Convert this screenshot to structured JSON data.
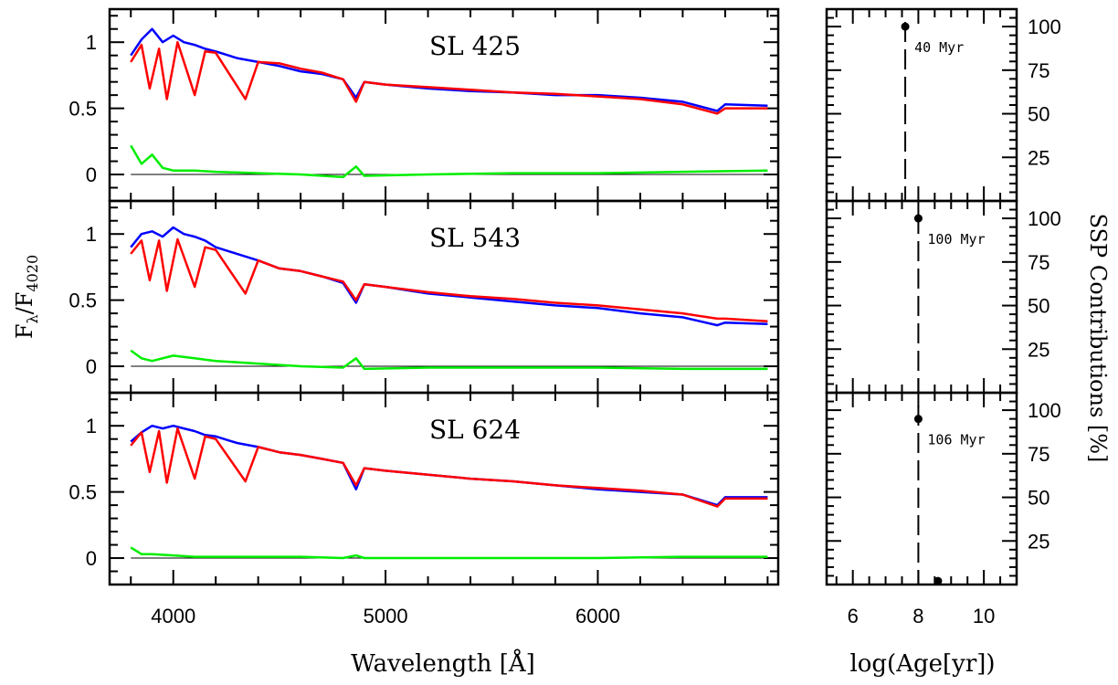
{
  "chart_data": [
    {
      "type": "line",
      "panel": "spectrum",
      "title": "SL 425",
      "xlim": [
        3700,
        6850
      ],
      "ylim": [
        -0.2,
        1.25
      ],
      "yticks": [
        0,
        0.5,
        1
      ],
      "ytick_labels": [
        "0",
        "0.5",
        "1"
      ],
      "zero_line": 0,
      "series": [
        {
          "color": "#0000ff",
          "x": [
            3800,
            3850,
            3900,
            3950,
            4000,
            4050,
            4100,
            4150,
            4200,
            4300,
            4400,
            4500,
            4600,
            4700,
            4800,
            4861,
            4900,
            5000,
            5200,
            5400,
            5600,
            5800,
            6000,
            6200,
            6400,
            6563,
            6600,
            6800
          ],
          "y": [
            0.9,
            1.02,
            1.1,
            1.0,
            1.05,
            1.0,
            0.98,
            0.95,
            0.93,
            0.88,
            0.85,
            0.82,
            0.78,
            0.76,
            0.72,
            0.58,
            0.7,
            0.68,
            0.65,
            0.63,
            0.62,
            0.6,
            0.6,
            0.58,
            0.55,
            0.48,
            0.53,
            0.52
          ]
        },
        {
          "color": "#ff0000",
          "x": [
            3800,
            3850,
            3889,
            3933,
            3970,
            4020,
            4101,
            4150,
            4200,
            4340,
            4400,
            4500,
            4600,
            4700,
            4800,
            4861,
            4900,
            5000,
            5200,
            5400,
            5600,
            5800,
            6000,
            6200,
            6400,
            6563,
            6600,
            6800
          ],
          "y": [
            0.85,
            0.98,
            0.65,
            0.95,
            0.57,
            1.0,
            0.6,
            0.93,
            0.92,
            0.57,
            0.85,
            0.84,
            0.8,
            0.77,
            0.72,
            0.55,
            0.7,
            0.68,
            0.66,
            0.64,
            0.62,
            0.61,
            0.59,
            0.57,
            0.53,
            0.46,
            0.5,
            0.5
          ]
        },
        {
          "color": "#00ee00",
          "x": [
            3800,
            3850,
            3900,
            3950,
            4000,
            4100,
            4200,
            4400,
            4600,
            4800,
            4861,
            4900,
            5200,
            5600,
            6000,
            6400,
            6800
          ],
          "y": [
            0.22,
            0.08,
            0.15,
            0.05,
            0.03,
            0.03,
            0.02,
            0.01,
            0.0,
            -0.02,
            0.06,
            -0.01,
            0.0,
            0.01,
            0.01,
            0.02,
            0.03
          ]
        }
      ]
    },
    {
      "type": "line",
      "panel": "spectrum",
      "title": "SL 543",
      "xlim": [
        3700,
        6850
      ],
      "ylim": [
        -0.2,
        1.25
      ],
      "yticks": [
        0,
        0.5,
        1
      ],
      "ytick_labels": [
        "0",
        "0.5",
        "1"
      ],
      "zero_line": 0,
      "series": [
        {
          "color": "#0000ff",
          "x": [
            3800,
            3850,
            3900,
            3950,
            4000,
            4050,
            4100,
            4150,
            4200,
            4300,
            4400,
            4500,
            4600,
            4700,
            4800,
            4861,
            4900,
            5000,
            5200,
            5400,
            5600,
            5800,
            6000,
            6200,
            6400,
            6563,
            6600,
            6800
          ],
          "y": [
            0.9,
            1.0,
            1.02,
            0.98,
            1.05,
            1.0,
            0.98,
            0.95,
            0.9,
            0.85,
            0.8,
            0.74,
            0.72,
            0.68,
            0.63,
            0.48,
            0.62,
            0.6,
            0.55,
            0.52,
            0.49,
            0.46,
            0.44,
            0.4,
            0.37,
            0.31,
            0.33,
            0.32
          ]
        },
        {
          "color": "#ff0000",
          "x": [
            3800,
            3850,
            3889,
            3933,
            3970,
            4020,
            4101,
            4150,
            4200,
            4340,
            4400,
            4500,
            4600,
            4700,
            4800,
            4861,
            4900,
            5000,
            5200,
            5400,
            5600,
            5800,
            6000,
            6200,
            6400,
            6563,
            6600,
            6800
          ],
          "y": [
            0.85,
            0.95,
            0.65,
            0.95,
            0.57,
            0.96,
            0.6,
            0.9,
            0.88,
            0.55,
            0.8,
            0.74,
            0.72,
            0.68,
            0.64,
            0.5,
            0.62,
            0.6,
            0.56,
            0.53,
            0.51,
            0.48,
            0.46,
            0.43,
            0.4,
            0.36,
            0.36,
            0.34
          ]
        },
        {
          "color": "#00ee00",
          "x": [
            3800,
            3850,
            3900,
            4000,
            4100,
            4200,
            4400,
            4600,
            4800,
            4861,
            4900,
            5200,
            5600,
            6000,
            6400,
            6800
          ],
          "y": [
            0.12,
            0.06,
            0.04,
            0.08,
            0.06,
            0.04,
            0.02,
            0.0,
            -0.01,
            0.06,
            -0.02,
            -0.01,
            -0.01,
            -0.01,
            -0.02,
            -0.02
          ]
        }
      ]
    },
    {
      "type": "line",
      "panel": "spectrum",
      "title": "SL 624",
      "xlim": [
        3700,
        6850
      ],
      "ylim": [
        -0.2,
        1.25
      ],
      "yticks": [
        0,
        0.5,
        1
      ],
      "ytick_labels": [
        "0",
        "0.5",
        "1"
      ],
      "xticks": [
        4000,
        5000,
        6000
      ],
      "xtick_labels": [
        "4000",
        "5000",
        "6000"
      ],
      "xlabel": "Wavelength [Å]",
      "ylabel_main": "F",
      "ylabel_num_sub": "λ",
      "ylabel_sep": "/F",
      "ylabel_den_sub": "4020",
      "zero_line": 0,
      "series": [
        {
          "color": "#0000ff",
          "x": [
            3800,
            3850,
            3900,
            3950,
            4000,
            4050,
            4100,
            4150,
            4200,
            4300,
            4400,
            4500,
            4600,
            4700,
            4800,
            4861,
            4900,
            5000,
            5200,
            5400,
            5600,
            5800,
            6000,
            6200,
            6400,
            6563,
            6600,
            6800
          ],
          "y": [
            0.88,
            0.95,
            1.0,
            0.98,
            1.0,
            0.98,
            0.96,
            0.93,
            0.92,
            0.87,
            0.84,
            0.8,
            0.78,
            0.75,
            0.72,
            0.52,
            0.68,
            0.66,
            0.63,
            0.6,
            0.58,
            0.55,
            0.52,
            0.5,
            0.48,
            0.4,
            0.46,
            0.46
          ]
        },
        {
          "color": "#ff0000",
          "x": [
            3800,
            3850,
            3889,
            3933,
            3970,
            4020,
            4101,
            4150,
            4200,
            4340,
            4400,
            4500,
            4600,
            4700,
            4800,
            4861,
            4900,
            5000,
            5200,
            5400,
            5600,
            5800,
            6000,
            6200,
            6400,
            6563,
            6600,
            6800
          ],
          "y": [
            0.85,
            0.95,
            0.65,
            0.96,
            0.57,
            0.98,
            0.6,
            0.92,
            0.9,
            0.58,
            0.84,
            0.8,
            0.78,
            0.75,
            0.72,
            0.55,
            0.68,
            0.66,
            0.63,
            0.6,
            0.58,
            0.55,
            0.53,
            0.51,
            0.48,
            0.39,
            0.45,
            0.45
          ]
        },
        {
          "color": "#00ee00",
          "x": [
            3800,
            3850,
            3900,
            4000,
            4100,
            4200,
            4400,
            4600,
            4800,
            4861,
            4900,
            5200,
            5600,
            6000,
            6400,
            6800
          ],
          "y": [
            0.08,
            0.03,
            0.03,
            0.02,
            0.01,
            0.01,
            0.01,
            0.01,
            0.0,
            0.02,
            0.0,
            0.0,
            0.0,
            0.0,
            0.01,
            0.01
          ]
        }
      ]
    },
    {
      "type": "scatter",
      "panel": "ssp",
      "xlim": [
        5.2,
        11.0
      ],
      "ylim": [
        0,
        110
      ],
      "yticks": [
        25,
        50,
        75,
        100
      ],
      "ytick_labels": [
        "25",
        "50",
        "75",
        "100"
      ],
      "points": [
        {
          "x": 7.6,
          "y": 100
        }
      ],
      "dashed_x": 7.6,
      "annotation": "40 Myr"
    },
    {
      "type": "scatter",
      "panel": "ssp",
      "xlim": [
        5.2,
        11.0
      ],
      "ylim": [
        0,
        110
      ],
      "yticks": [
        25,
        50,
        75,
        100
      ],
      "ytick_labels": [
        "25",
        "50",
        "75",
        "100"
      ],
      "points": [
        {
          "x": 8.0,
          "y": 100
        }
      ],
      "dashed_x": 8.0,
      "annotation": "100 Myr"
    },
    {
      "type": "scatter",
      "panel": "ssp",
      "xlim": [
        5.2,
        11.0
      ],
      "ylim": [
        0,
        110
      ],
      "yticks": [
        25,
        50,
        75,
        100
      ],
      "ytick_labels": [
        "25",
        "50",
        "75",
        "100"
      ],
      "xticks": [
        6,
        8,
        10
      ],
      "xtick_labels": [
        "6",
        "8",
        "10"
      ],
      "xlabel": "log(Age[yr])",
      "ylabel": "SSP Contributions [%]",
      "points": [
        {
          "x": 8.0,
          "y": 95
        },
        {
          "x": 8.6,
          "y": 2
        }
      ],
      "dashed_x": 8.0,
      "annotation": "106 Myr"
    }
  ]
}
